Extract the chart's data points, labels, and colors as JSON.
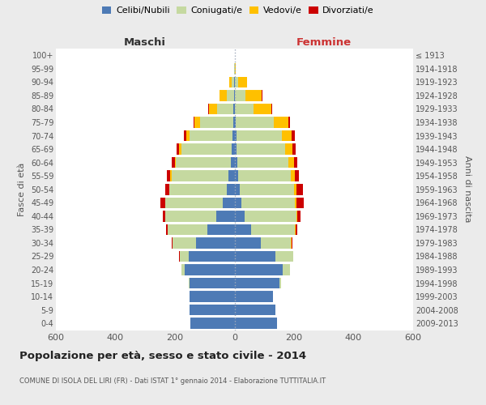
{
  "age_groups": [
    "0-4",
    "5-9",
    "10-14",
    "15-19",
    "20-24",
    "25-29",
    "30-34",
    "35-39",
    "40-44",
    "45-49",
    "50-54",
    "55-59",
    "60-64",
    "65-69",
    "70-74",
    "75-79",
    "80-84",
    "85-89",
    "90-94",
    "95-99",
    "100+"
  ],
  "birth_years": [
    "2009-2013",
    "2004-2008",
    "1999-2003",
    "1994-1998",
    "1989-1993",
    "1984-1988",
    "1979-1983",
    "1974-1978",
    "1969-1973",
    "1964-1968",
    "1959-1963",
    "1954-1958",
    "1949-1953",
    "1944-1948",
    "1939-1943",
    "1934-1938",
    "1929-1933",
    "1924-1928",
    "1919-1923",
    "1914-1918",
    "≤ 1913"
  ],
  "male_celibe": [
    148,
    150,
    152,
    152,
    168,
    155,
    128,
    90,
    60,
    40,
    26,
    20,
    13,
    10,
    8,
    5,
    3,
    2,
    1,
    0,
    0
  ],
  "male_coniugato": [
    0,
    0,
    0,
    2,
    10,
    30,
    80,
    135,
    172,
    192,
    192,
    192,
    183,
    168,
    143,
    112,
    55,
    25,
    8,
    1,
    0
  ],
  "male_vedovo": [
    0,
    0,
    0,
    0,
    0,
    0,
    0,
    0,
    0,
    1,
    2,
    3,
    5,
    8,
    12,
    18,
    28,
    22,
    10,
    1,
    0
  ],
  "male_divorziato": [
    0,
    0,
    0,
    0,
    0,
    1,
    3,
    6,
    9,
    15,
    13,
    11,
    9,
    9,
    6,
    3,
    2,
    1,
    0,
    0,
    0
  ],
  "female_nubile": [
    143,
    138,
    128,
    152,
    162,
    138,
    88,
    55,
    35,
    22,
    18,
    12,
    10,
    8,
    6,
    4,
    2,
    2,
    1,
    0,
    0
  ],
  "female_coniugata": [
    0,
    0,
    0,
    5,
    24,
    58,
    102,
    148,
    172,
    182,
    182,
    178,
    172,
    162,
    152,
    128,
    62,
    35,
    10,
    1,
    0
  ],
  "female_vedova": [
    0,
    0,
    0,
    0,
    0,
    1,
    1,
    2,
    3,
    5,
    8,
    12,
    18,
    25,
    35,
    50,
    60,
    55,
    30,
    2,
    1
  ],
  "female_divorziata": [
    0,
    0,
    0,
    0,
    0,
    1,
    3,
    6,
    13,
    25,
    22,
    13,
    11,
    11,
    9,
    4,
    2,
    1,
    0,
    0,
    0
  ],
  "colors": {
    "celibe": "#4d7ab5",
    "coniugato": "#c5d9a0",
    "vedovo": "#ffc000",
    "divorziato": "#cc0000"
  },
  "legend_labels": [
    "Celibi/Nubili",
    "Coniugati/e",
    "Vedovi/e",
    "Divorziati/e"
  ],
  "title": "Popolazione per età, sesso e stato civile - 2014",
  "subtitle": "COMUNE DI ISOLA DEL LIRI (FR) - Dati ISTAT 1° gennaio 2014 - Elaborazione TUTTITALIA.IT",
  "maschi_label": "Maschi",
  "femmine_label": "Femmine",
  "ylabel_left": "Fasce di età",
  "ylabel_right": "Anni di nascita",
  "xlim": 600,
  "bg_color": "#ebebeb",
  "plot_bg": "#ffffff"
}
